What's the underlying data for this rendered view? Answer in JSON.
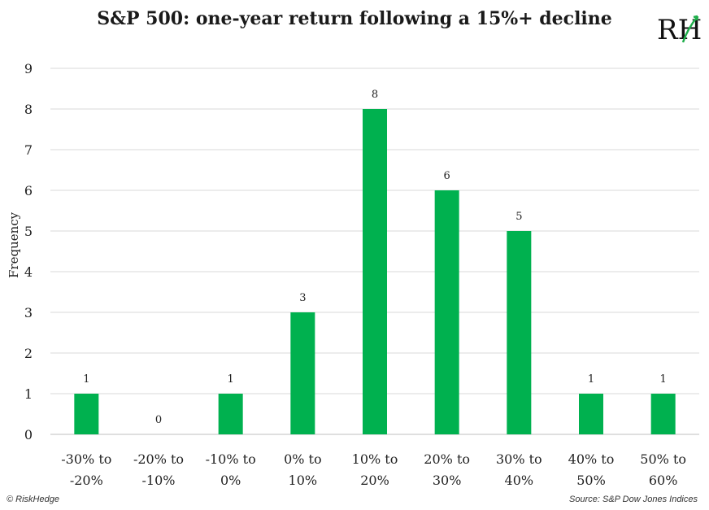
{
  "title": "S&P 500: one-year return following a 15%+ decline",
  "logo_text": "RH",
  "footer": {
    "left": "© RiskHedge",
    "right": "Source: S&P Dow Jones Indices"
  },
  "colors": {
    "bar": "#00b14f",
    "grid": "#d9d9d9",
    "logo_accent": "#1fae4b"
  },
  "chart_data": {
    "type": "bar",
    "title": "S&P 500: one-year return following a 15%+ decline",
    "xlabel": "",
    "ylabel": "Frequency",
    "categories": [
      [
        "-30% to",
        "-20%"
      ],
      [
        "-20% to",
        "-10%"
      ],
      [
        "-10% to",
        "0%"
      ],
      [
        "0% to",
        "10%"
      ],
      [
        "10% to",
        "20%"
      ],
      [
        "20% to",
        "30%"
      ],
      [
        "30% to",
        "40%"
      ],
      [
        "40% to",
        "50%"
      ],
      [
        "50% to",
        "60%"
      ]
    ],
    "values": [
      1,
      0,
      1,
      3,
      8,
      6,
      5,
      1,
      1
    ],
    "ylim": [
      0,
      9
    ],
    "yticks": [
      0,
      1,
      2,
      3,
      4,
      5,
      6,
      7,
      8,
      9
    ],
    "grid": true,
    "legend": "none"
  }
}
